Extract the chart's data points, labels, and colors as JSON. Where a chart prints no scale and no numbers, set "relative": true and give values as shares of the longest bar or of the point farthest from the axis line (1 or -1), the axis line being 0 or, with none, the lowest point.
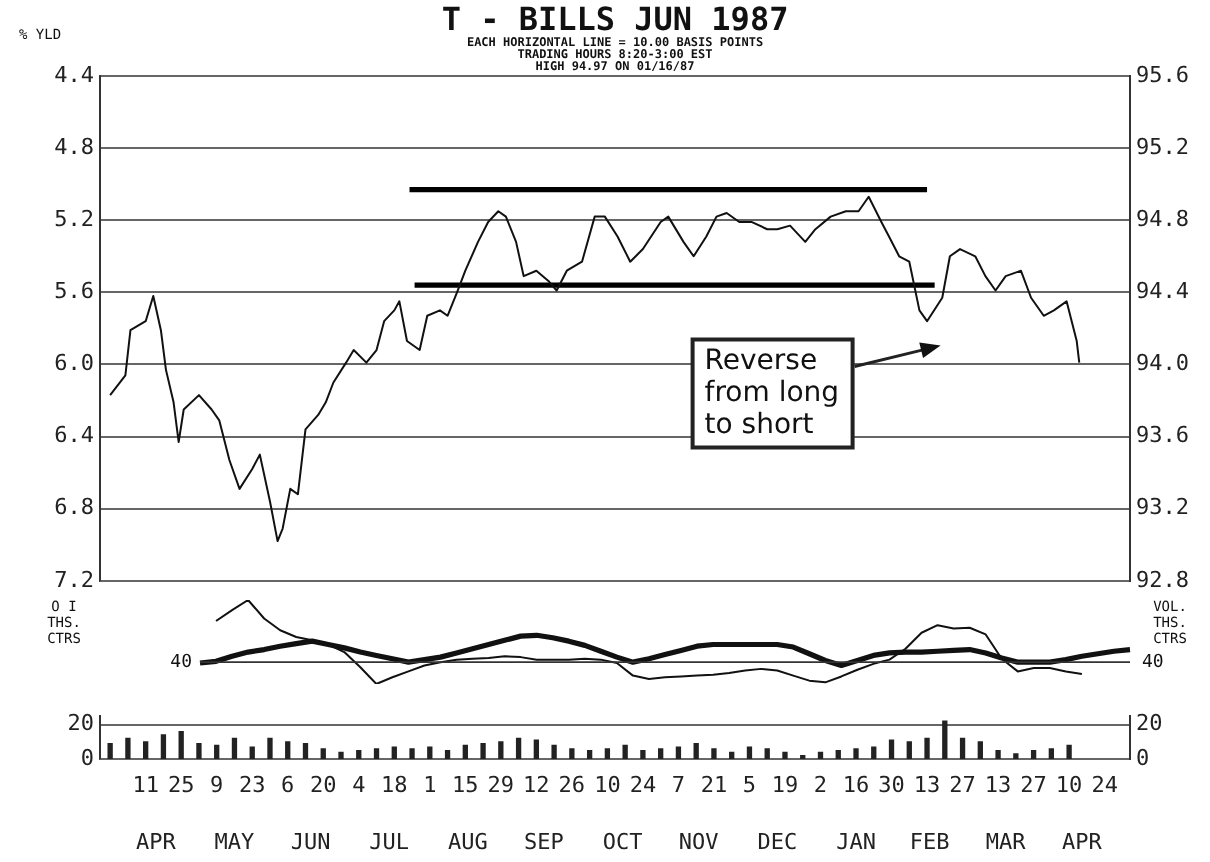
{
  "chart_data": [
    {
      "type": "line",
      "title": "T - BILLS JUN 1987",
      "subtitle": "EACH HORIZONTAL LINE = 10.00 BASIS POINTS\nTRADING HOURS 8:20-3:00 EST\nHIGH 94.97 ON 01/16/87",
      "ylabel": "% YLD",
      "x": [
        "1986-03-28",
        "1986-04-03",
        "1986-04-05",
        "1986-04-11",
        "1986-04-14",
        "1986-04-17",
        "1986-04-19",
        "1986-04-22",
        "1986-04-24",
        "1986-04-26",
        "1986-05-02",
        "1986-05-07",
        "1986-05-10",
        "1986-05-14",
        "1986-05-18",
        "1986-05-23",
        "1986-05-26",
        "1986-05-30",
        "1986-06-02",
        "1986-06-04",
        "1986-06-07",
        "1986-06-10",
        "1986-06-13",
        "1986-06-18",
        "1986-06-21",
        "1986-06-24",
        "1986-06-29",
        "1986-07-02",
        "1986-07-07",
        "1986-07-11",
        "1986-07-14",
        "1986-07-18",
        "1986-07-20",
        "1986-07-23",
        "1986-07-28",
        "1986-07-31",
        "1986-08-05",
        "1986-08-08",
        "1986-08-12",
        "1986-08-15",
        "1986-08-20",
        "1986-08-24",
        "1986-08-28",
        "1986-08-31",
        "1986-09-04",
        "1986-09-07",
        "1986-09-12",
        "1986-09-17",
        "1986-09-20",
        "1986-09-24",
        "1986-09-30",
        "1986-10-05",
        "1986-10-09",
        "1986-10-14",
        "1986-10-19",
        "1986-10-24",
        "1986-10-31",
        "1986-11-03",
        "1986-11-09",
        "1986-11-13",
        "1986-11-18",
        "1986-11-22",
        "1986-11-26",
        "1986-12-01",
        "1986-12-06",
        "1986-12-12",
        "1986-12-16",
        "1986-12-21",
        "1986-12-27",
        "1986-12-31",
        "1987-01-06",
        "1987-01-12",
        "1987-01-17",
        "1987-01-21",
        "1987-01-26",
        "1987-01-29",
        "1987-02-02",
        "1987-02-06",
        "1987-02-10",
        "1987-02-13",
        "1987-02-19",
        "1987-02-22",
        "1987-02-26",
        "1987-03-04",
        "1987-03-08",
        "1987-03-12",
        "1987-03-16",
        "1987-03-22",
        "1987-03-26",
        "1987-03-31",
        "1987-04-04",
        "1987-04-09",
        "1987-04-13",
        "1987-04-14"
      ],
      "series": [
        {
          "color": "#111111",
          "axis": "y2",
          "values": [
            93.83,
            93.94,
            94.19,
            94.24,
            94.38,
            94.19,
            93.97,
            93.79,
            93.57,
            93.75,
            93.83,
            93.75,
            93.69,
            93.47,
            93.31,
            93.42,
            93.5,
            93.24,
            93.02,
            93.09,
            93.31,
            93.28,
            93.64,
            93.72,
            93.79,
            93.9,
            94.01,
            94.08,
            94.01,
            94.08,
            94.24,
            94.3,
            94.35,
            94.13,
            94.08,
            94.27,
            94.3,
            94.27,
            94.41,
            94.52,
            94.68,
            94.79,
            94.85,
            94.82,
            94.68,
            94.49,
            94.52,
            94.46,
            94.41,
            94.52,
            94.57,
            94.82,
            94.82,
            94.71,
            94.57,
            94.64,
            94.79,
            94.82,
            94.68,
            94.6,
            94.71,
            94.82,
            94.84,
            94.79,
            94.79,
            94.75,
            94.75,
            94.77,
            94.68,
            94.75,
            94.82,
            94.85,
            94.85,
            94.93,
            94.79,
            94.71,
            94.6,
            94.57,
            94.3,
            94.24,
            94.37,
            94.6,
            94.64,
            94.6,
            94.49,
            94.41,
            94.49,
            94.52,
            94.37,
            94.27,
            94.3,
            94.35,
            94.13,
            94.01
          ]
        },
        {
          "type": "line",
          "color": "#000000",
          "axis": "y2",
          "x": [
            "1986-07-24",
            "1987-02-13"
          ],
          "values": [
            94.97,
            94.97
          ]
        },
        {
          "type": "line",
          "color": "#000000",
          "axis": "y2",
          "x": [
            "1986-07-26",
            "1987-02-16"
          ],
          "values": [
            94.44,
            94.44
          ]
        }
      ],
      "xlim": [
        "1986-03-24",
        "1987-05-04"
      ],
      "ylim": [
        7.2,
        4.4
      ],
      "yticks": [
        4.4,
        4.8,
        5.2,
        5.6,
        {
          "value": 6,
          "label": "6.0"
        },
        6.4,
        6.8,
        7.2
      ],
      "y2lim": [
        92.8,
        95.6
      ],
      "y2ticks": [
        92.8,
        93.2,
        93.6,
        {
          "value": 94,
          "label": "94.0"
        },
        94.4,
        94.8,
        95.2,
        95.6
      ],
      "grid": "y",
      "tick_labels": "y",
      "annotations": [
        "Reverse from long to short"
      ]
    },
    {
      "type": "line",
      "ylabel": "O I\nTHS.\nCTRS",
      "y2label": "VOL.\nTHS.\nCTRS",
      "relative": true,
      "categories": [
        null,
        null,
        null,
        null,
        null,
        null,
        null,
        null,
        null,
        null,
        null,
        null,
        null,
        null,
        null,
        null,
        null,
        null,
        null,
        null,
        null,
        null,
        null,
        null,
        null,
        null,
        null,
        null,
        null,
        null,
        null,
        null,
        null,
        null,
        null,
        null,
        null,
        null,
        null,
        null,
        null,
        null,
        null,
        null,
        null,
        null,
        null,
        null,
        null,
        null,
        null,
        null,
        null,
        null,
        null,
        null,
        null,
        null,
        null
      ],
      "series": [
        {
          "color": "#111111",
          "values": [
            null,
            0.75,
            0.88,
            1.0,
            0.78,
            0.64,
            0.56,
            0.52,
            0.47,
            0.38,
            0.2,
            0,
            0.08,
            0.15,
            0.22,
            0.26,
            0.29,
            0.3,
            0.31,
            0.33,
            0.32,
            0.29,
            0.29,
            0.29,
            0.3,
            0.29,
            0.25,
            0.1,
            0.06,
            0.08,
            0.09,
            0.1,
            0.11,
            0.13,
            0.16,
            0.18,
            0.16,
            0.1,
            0.04,
            0.02,
            0.09,
            0.17,
            0.24,
            0.29,
            0.42,
            0.61,
            0.7,
            0.66,
            0.67,
            0.59,
            0.3,
            0.15,
            0.19,
            0.19,
            0.15,
            0.12,
            null,
            null,
            null
          ]
        },
        {
          "type": "line",
          "color": "#111111",
          "values": [
            0.25,
            0.27,
            0.33,
            0.38,
            0.41,
            0.45,
            0.48,
            0.51,
            0.47,
            0.43,
            0.38,
            0.34,
            0.3,
            0.26,
            0.29,
            0.32,
            0.37,
            0.42,
            0.47,
            0.52,
            0.57,
            0.58,
            0.55,
            0.51,
            0.46,
            0.39,
            0.32,
            0.26,
            0.3,
            0.35,
            0.4,
            0.45,
            0.47,
            0.47,
            0.47,
            0.47,
            0.47,
            0.44,
            0.36,
            0.28,
            0.22,
            0.28,
            0.34,
            0.37,
            0.38,
            0.38,
            0.39,
            0.4,
            0.41,
            0.37,
            0.31,
            0.26,
            0.26,
            0.26,
            0.29,
            0.33,
            0.36,
            0.39,
            0.41
          ]
        }
      ],
      "tick_labels": false,
      "ref_lines": [
        {
          "axis": "y",
          "value": 0.26
        }
      ],
      "annotations": [
        "40",
        "40"
      ]
    },
    {
      "type": "bar",
      "color": "#222222",
      "x": [
        "1986-03-28",
        "1986-04-04",
        "1986-04-11",
        "1986-04-18",
        "1986-04-25",
        "1986-05-02",
        "1986-05-09",
        "1986-05-16",
        "1986-05-23",
        "1986-05-30",
        "1986-06-06",
        "1986-06-13",
        "1986-06-20",
        "1986-06-27",
        "1986-07-04",
        "1986-07-11",
        "1986-07-18",
        "1986-07-25",
        "1986-08-01",
        "1986-08-08",
        "1986-08-15",
        "1986-08-22",
        "1986-08-29",
        "1986-09-05",
        "1986-09-12",
        "1986-09-19",
        "1986-09-26",
        "1986-10-03",
        "1986-10-10",
        "1986-10-17",
        "1986-10-24",
        "1986-10-31",
        "1986-11-07",
        "1986-11-14",
        "1986-11-21",
        "1986-11-28",
        "1986-12-05",
        "1986-12-12",
        "1986-12-19",
        "1986-12-26",
        "1987-01-02",
        "1987-01-09",
        "1987-01-16",
        "1987-01-23",
        "1987-01-30",
        "1987-02-06",
        "1987-02-13",
        "1987-02-20",
        "1987-02-27",
        "1987-03-06",
        "1987-03-13",
        "1987-03-20",
        "1987-03-27",
        "1987-04-03",
        "1987-04-10"
      ],
      "values": [
        9,
        12,
        10,
        14,
        16,
        9,
        8,
        12,
        7,
        12,
        10,
        9,
        6,
        4,
        5,
        6,
        7,
        6,
        7,
        5,
        8,
        9,
        10,
        12,
        11,
        8,
        6,
        5,
        6,
        8,
        5,
        6,
        7,
        9,
        6,
        4,
        7,
        6,
        4,
        2,
        4,
        5,
        6,
        7,
        11,
        10,
        12,
        22,
        12,
        10,
        5,
        3,
        5,
        6,
        8
      ],
      "xlim": [
        "1986-03-24",
        "1987-05-04"
      ],
      "xticks": [
        {
          "value": "1986-04-11",
          "label": "11"
        },
        {
          "value": "1986-04-25",
          "label": "25"
        },
        {
          "value": "1986-05-09",
          "label": "9"
        },
        {
          "value": "1986-05-23",
          "label": "23"
        },
        {
          "value": "1986-06-06",
          "label": "6"
        },
        {
          "value": "1986-06-20",
          "label": "20"
        },
        {
          "value": "1986-07-04",
          "label": "4"
        },
        {
          "value": "1986-07-18",
          "label": "18"
        },
        {
          "value": "1986-08-01",
          "label": "1"
        },
        {
          "value": "1986-08-15",
          "label": "15"
        },
        {
          "value": "1986-08-29",
          "label": "29"
        },
        {
          "value": "1986-09-12",
          "label": "12"
        },
        {
          "value": "1986-09-26",
          "label": "26"
        },
        {
          "value": "1986-10-10",
          "label": "10"
        },
        {
          "value": "1986-10-24",
          "label": "24"
        },
        {
          "value": "1986-11-07",
          "label": "7"
        },
        {
          "value": "1986-11-21",
          "label": "21"
        },
        {
          "value": "1986-12-05",
          "label": "5"
        },
        {
          "value": "1986-12-19",
          "label": "19"
        },
        {
          "value": "1987-01-02",
          "label": "2"
        },
        {
          "value": "1987-01-16",
          "label": "16"
        },
        {
          "value": "1987-01-30",
          "label": "30"
        },
        {
          "value": "1987-02-13",
          "label": "13"
        },
        {
          "value": "1987-02-27",
          "label": "27"
        },
        {
          "value": "1987-03-13",
          "label": "13"
        },
        {
          "value": "1987-03-27",
          "label": "27"
        },
        {
          "value": "1987-04-10",
          "label": "10"
        },
        {
          "value": "1987-04-24",
          "label": "24"
        }
      ],
      "x2lim": [
        "1986-03-24",
        "1987-05-04"
      ],
      "x2ticks": [
        {
          "value": "1986-04-15",
          "label": "APR"
        },
        {
          "value": "1986-05-16",
          "label": "MAY"
        },
        {
          "value": "1986-06-15",
          "label": "JUN"
        },
        {
          "value": "1986-07-16",
          "label": "JUL"
        },
        {
          "value": "1986-08-16",
          "label": "AUG"
        },
        {
          "value": "1986-09-15",
          "label": "SEP"
        },
        {
          "value": "1986-10-16",
          "label": "OCT"
        },
        {
          "value": "1986-11-15",
          "label": "NOV"
        },
        {
          "value": "1986-12-16",
          "label": "DEC"
        },
        {
          "value": "1987-01-16",
          "label": "JAN"
        },
        {
          "value": "1987-02-14",
          "label": "FEB"
        },
        {
          "value": "1987-03-16",
          "label": "MAR"
        },
        {
          "value": "1987-04-15",
          "label": "APR"
        }
      ],
      "ylim": [
        0,
        25
      ],
      "yticks": [
        0,
        20
      ],
      "y2lim": [
        0,
        25
      ],
      "y2ticks": [
        0,
        20
      ],
      "grid": "y"
    }
  ]
}
